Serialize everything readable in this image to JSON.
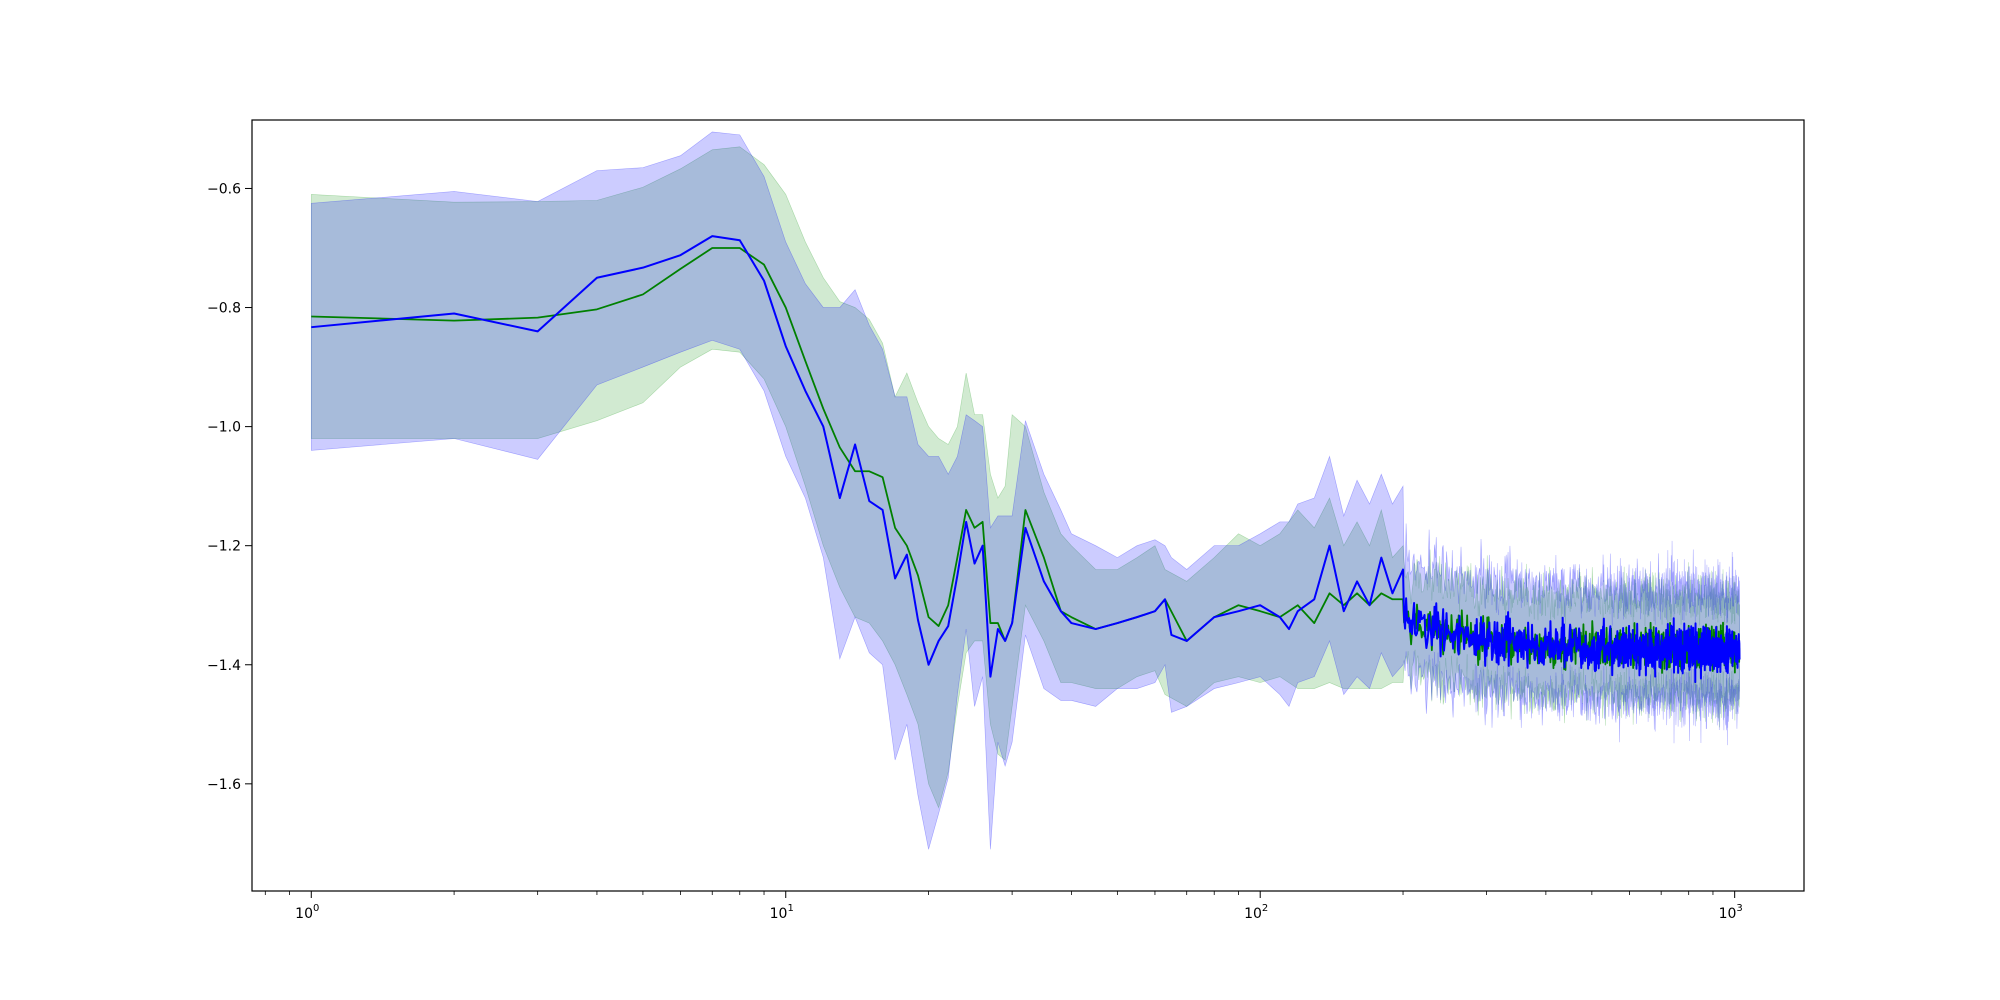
{
  "chart_data": {
    "type": "line",
    "x_scale": "log",
    "xlim": [
      0.75,
      1400
    ],
    "ylim": [
      -1.78,
      -0.485
    ],
    "grid": false,
    "legend": null,
    "x_ticks": [
      {
        "value": 1,
        "base": "10",
        "exp": "0"
      },
      {
        "value": 10,
        "base": "10",
        "exp": "1"
      },
      {
        "value": 100,
        "base": "10",
        "exp": "2"
      },
      {
        "value": 1000,
        "base": "10",
        "exp": "3"
      }
    ],
    "y_ticks": [
      {
        "value": -0.6,
        "label": "−0.6"
      },
      {
        "value": -0.8,
        "label": "−0.8"
      },
      {
        "value": -1.0,
        "label": "−1.0"
      },
      {
        "value": -1.2,
        "label": "−1.2"
      },
      {
        "value": -1.4,
        "label": "−1.4"
      },
      {
        "value": -1.6,
        "label": "−1.6"
      }
    ],
    "series": [
      {
        "color": "#008000",
        "band_color": "#2ca02c",
        "band_opacity": 0.22,
        "x": [
          1,
          2,
          3,
          4,
          5,
          6,
          7,
          8,
          9,
          10,
          11,
          12,
          13,
          14,
          15,
          16,
          17,
          18,
          19,
          20,
          21,
          22,
          23,
          24,
          25,
          26,
          27,
          28,
          29,
          30,
          32,
          35,
          38,
          40,
          45,
          50,
          55,
          60,
          63,
          70,
          80,
          90,
          100,
          110,
          120,
          130,
          140,
          150,
          160,
          170,
          180,
          190,
          200
        ],
        "y": [
          -0.815,
          -0.822,
          -0.817,
          -0.803,
          -0.778,
          -0.735,
          -0.7,
          -0.7,
          -0.728,
          -0.8,
          -0.89,
          -0.97,
          -1.035,
          -1.075,
          -1.075,
          -1.085,
          -1.17,
          -1.2,
          -1.25,
          -1.32,
          -1.335,
          -1.3,
          -1.22,
          -1.14,
          -1.17,
          -1.16,
          -1.33,
          -1.33,
          -1.36,
          -1.33,
          -1.14,
          -1.22,
          -1.31,
          -1.32,
          -1.34,
          -1.33,
          -1.32,
          -1.31,
          -1.29,
          -1.36,
          -1.32,
          -1.3,
          -1.31,
          -1.32,
          -1.3,
          -1.33,
          -1.28,
          -1.3,
          -1.28,
          -1.3,
          -1.28,
          -1.29,
          -1.29
        ],
        "upper": [
          -0.61,
          -0.623,
          -0.622,
          -0.62,
          -0.598,
          -0.567,
          -0.535,
          -0.53,
          -0.56,
          -0.61,
          -0.69,
          -0.75,
          -0.79,
          -0.8,
          -0.82,
          -0.86,
          -0.95,
          -0.91,
          -0.96,
          -1.0,
          -1.02,
          -1.03,
          -1.0,
          -0.91,
          -0.98,
          -0.98,
          -1.08,
          -1.12,
          -1.1,
          -0.98,
          -1.0,
          -1.11,
          -1.18,
          -1.2,
          -1.24,
          -1.24,
          -1.22,
          -1.2,
          -1.24,
          -1.26,
          -1.22,
          -1.18,
          -1.2,
          -1.18,
          -1.14,
          -1.17,
          -1.12,
          -1.2,
          -1.16,
          -1.2,
          -1.14,
          -1.22,
          -1.2
        ],
        "lower": [
          -1.02,
          -1.02,
          -1.02,
          -0.99,
          -0.96,
          -0.9,
          -0.87,
          -0.875,
          -0.92,
          -1.0,
          -1.1,
          -1.2,
          -1.27,
          -1.32,
          -1.33,
          -1.36,
          -1.4,
          -1.45,
          -1.5,
          -1.6,
          -1.64,
          -1.58,
          -1.47,
          -1.38,
          -1.36,
          -1.36,
          -1.5,
          -1.55,
          -1.56,
          -1.47,
          -1.3,
          -1.36,
          -1.43,
          -1.43,
          -1.44,
          -1.44,
          -1.42,
          -1.41,
          -1.45,
          -1.47,
          -1.43,
          -1.42,
          -1.43,
          -1.42,
          -1.44,
          -1.44,
          -1.43,
          -1.44,
          -1.44,
          -1.44,
          -1.44,
          -1.43,
          -1.43
        ]
      },
      {
        "color": "#0000ff",
        "band_color": "#0000ff",
        "band_opacity": 0.2,
        "x": [
          1,
          2,
          3,
          4,
          5,
          6,
          7,
          8,
          9,
          10,
          11,
          12,
          13,
          14,
          15,
          16,
          17,
          18,
          19,
          20,
          21,
          22,
          23,
          24,
          25,
          26,
          27,
          28,
          29,
          30,
          32,
          35,
          38,
          40,
          45,
          50,
          55,
          60,
          63,
          65,
          70,
          80,
          90,
          100,
          110,
          115,
          120,
          130,
          140,
          150,
          160,
          170,
          180,
          190,
          200
        ],
        "y": [
          -0.833,
          -0.81,
          -0.84,
          -0.75,
          -0.733,
          -0.712,
          -0.68,
          -0.687,
          -0.755,
          -0.865,
          -0.94,
          -1.0,
          -1.12,
          -1.03,
          -1.125,
          -1.14,
          -1.255,
          -1.215,
          -1.325,
          -1.4,
          -1.36,
          -1.335,
          -1.25,
          -1.16,
          -1.23,
          -1.2,
          -1.42,
          -1.34,
          -1.36,
          -1.33,
          -1.17,
          -1.26,
          -1.31,
          -1.33,
          -1.34,
          -1.33,
          -1.32,
          -1.31,
          -1.29,
          -1.35,
          -1.36,
          -1.32,
          -1.31,
          -1.3,
          -1.32,
          -1.34,
          -1.31,
          -1.29,
          -1.2,
          -1.31,
          -1.26,
          -1.3,
          -1.22,
          -1.28,
          -1.24
        ],
        "upper": [
          -0.625,
          -0.605,
          -0.622,
          -0.57,
          -0.565,
          -0.545,
          -0.505,
          -0.51,
          -0.58,
          -0.69,
          -0.76,
          -0.8,
          -0.8,
          -0.77,
          -0.83,
          -0.87,
          -0.95,
          -0.95,
          -1.03,
          -1.05,
          -1.05,
          -1.08,
          -1.05,
          -0.98,
          -0.99,
          -1.0,
          -1.17,
          -1.15,
          -1.15,
          -1.15,
          -0.99,
          -1.08,
          -1.14,
          -1.18,
          -1.2,
          -1.22,
          -1.2,
          -1.19,
          -1.2,
          -1.22,
          -1.24,
          -1.2,
          -1.2,
          -1.18,
          -1.16,
          -1.16,
          -1.13,
          -1.12,
          -1.05,
          -1.15,
          -1.09,
          -1.13,
          -1.08,
          -1.13,
          -1.1
        ],
        "lower": [
          -1.04,
          -1.02,
          -1.055,
          -0.93,
          -0.9,
          -0.875,
          -0.855,
          -0.87,
          -0.94,
          -1.05,
          -1.12,
          -1.22,
          -1.39,
          -1.32,
          -1.38,
          -1.4,
          -1.56,
          -1.5,
          -1.62,
          -1.71,
          -1.65,
          -1.59,
          -1.45,
          -1.34,
          -1.47,
          -1.42,
          -1.71,
          -1.53,
          -1.57,
          -1.53,
          -1.35,
          -1.44,
          -1.46,
          -1.46,
          -1.47,
          -1.44,
          -1.44,
          -1.43,
          -1.4,
          -1.48,
          -1.47,
          -1.44,
          -1.43,
          -1.42,
          -1.45,
          -1.47,
          -1.43,
          -1.42,
          -1.36,
          -1.45,
          -1.42,
          -1.44,
          -1.38,
          -1.42,
          -1.4
        ]
      }
    ],
    "dense_tail": {
      "x_range": [
        200,
        1024
      ],
      "green": {
        "center": -1.372,
        "trend": 0.04,
        "noise": 0.024,
        "band_upper": 0.065,
        "band_lower": 0.06,
        "band_noise": 0.03
      },
      "blue": {
        "center": -1.375,
        "trend": 0.045,
        "noise": 0.028,
        "band_upper": 0.08,
        "band_lower": 0.065,
        "band_noise": 0.035
      }
    }
  }
}
